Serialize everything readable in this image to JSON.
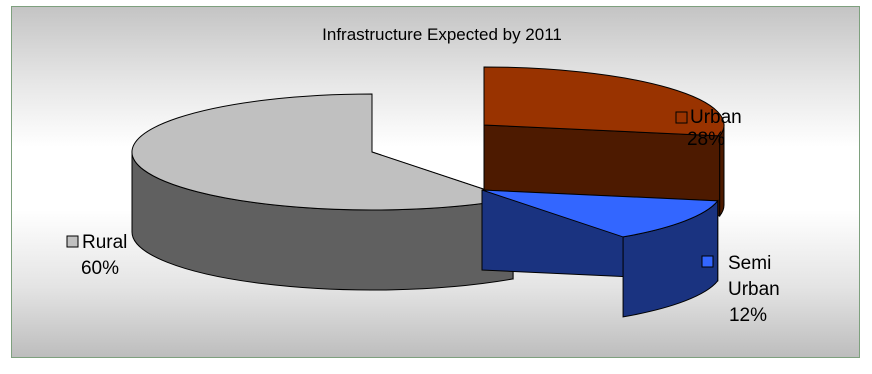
{
  "chart_data": {
    "type": "pie",
    "title": "Infrastructure Expected by 2011",
    "slices": [
      {
        "label": "Urban",
        "value": 28,
        "percent": "28%",
        "color": "#993300",
        "side_color": "#4d1a00"
      },
      {
        "label": "Semi Urban",
        "label_lines": [
          "Semi",
          "Urban"
        ],
        "value": 12,
        "percent": "12%",
        "color": "#3366ff",
        "side_color": "#1a3380"
      },
      {
        "label": "Rural",
        "value": 60,
        "percent": "60%",
        "color": "#c0c0c0",
        "side_color": "#606060"
      }
    ],
    "exploded": true,
    "three_d": true,
    "legend": "none"
  }
}
